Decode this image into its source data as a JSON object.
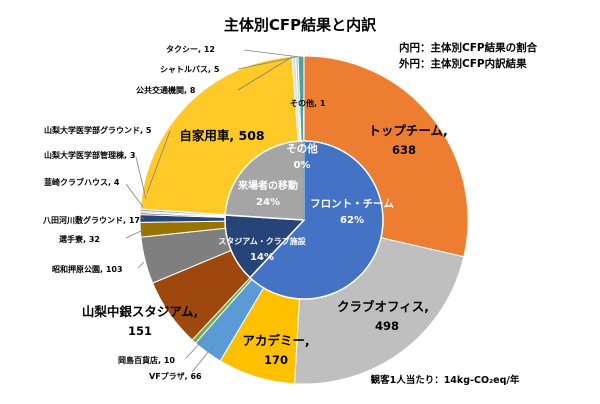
{
  "chart_data": {
    "type": "pie",
    "title": "主体別CFP結果と内訳",
    "legend_notes": [
      "内円：主体別CFP結果の割合",
      "外円：主体別CFP内訳結果"
    ],
    "footer": "観客1人当たり：14kg-CO₂eq/年",
    "inner": {
      "name": "主体別CFP結果の割合",
      "slices": [
        {
          "label": "フロント・チーム",
          "pct_label": "62%",
          "value": 62,
          "color": "#4472c4",
          "label_color": "#ffffff"
        },
        {
          "label": "スタジアム・クラブ施設",
          "pct_label": "14%",
          "value": 14,
          "color": "#264478",
          "label_color": "#ffffff"
        },
        {
          "label": "来場者の移動",
          "pct_label": "24%",
          "value": 24,
          "color": "#a5a5a5",
          "label_color": "#ffffff"
        },
        {
          "label": "その他",
          "pct_label": "0%",
          "value": 0,
          "color": "#5b9bd5",
          "label_color": "#ffffff"
        }
      ]
    },
    "outer": {
      "name": "主体別CFP内訳結果",
      "slices": [
        {
          "label": "トップチーム",
          "value": 638,
          "color": "#ed7d31"
        },
        {
          "label": "クラブオフィス",
          "value": 498,
          "color": "#bfbfbf"
        },
        {
          "label": "アカデミー",
          "value": 170,
          "color": "#ffc000"
        },
        {
          "label": "VFプラザ",
          "value": 66,
          "color": "#5b9bd5"
        },
        {
          "label": "岡島百貨店",
          "value": 10,
          "color": "#70ad47"
        },
        {
          "label": "山梨中銀スタジアム",
          "value": 151,
          "color": "#9e480e"
        },
        {
          "label": "昭和押原公園",
          "value": 103,
          "color": "#7f7f7f"
        },
        {
          "label": "選手寮",
          "value": 32,
          "color": "#997300"
        },
        {
          "label": "八田河川敷グラウンド",
          "value": 17,
          "color": "#264478"
        },
        {
          "label": "韮崎クラブハウス",
          "value": 4,
          "color": "#636363"
        },
        {
          "label": "山梨大学医学部管理棟",
          "value": 3,
          "color": "#c55a11"
        },
        {
          "label": "山梨大学医学部グラウンド",
          "value": 5,
          "color": "#8faadc"
        },
        {
          "label": "自家用車",
          "value": 508,
          "color": "#ffca28"
        },
        {
          "label": "公共交通機関",
          "value": 8,
          "color": "#d0e3f2"
        },
        {
          "label": "シャトルバス",
          "value": 5,
          "color": "#a9d18e"
        },
        {
          "label": "タクシー",
          "value": 12,
          "color": "#4ca3a3"
        },
        {
          "label": "その他",
          "value": 1,
          "color": "#2e75b6"
        }
      ]
    }
  }
}
